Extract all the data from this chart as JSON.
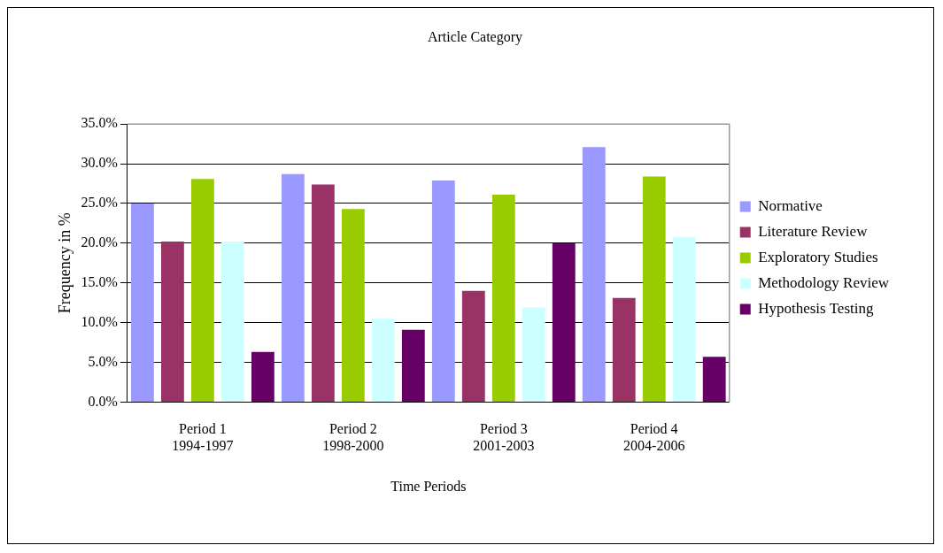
{
  "chart_data": {
    "type": "bar",
    "title": "Article Category",
    "xlabel": "Time Periods",
    "ylabel": "Frequency in %",
    "categories": [
      "Period 1\n1994-1997",
      "Period 2\n1998-2000",
      "Period 3\n2001-2003",
      "Period 4\n2004-2006"
    ],
    "series": [
      {
        "name": "Normative",
        "color": "#9999ff",
        "values": [
          25.0,
          28.7,
          27.9,
          32.1
        ]
      },
      {
        "name": "Literature Review",
        "color": "#993366",
        "values": [
          20.2,
          27.4,
          14.0,
          13.1
        ]
      },
      {
        "name": "Exploratory Studies",
        "color": "#99cc00",
        "values": [
          28.1,
          24.3,
          26.1,
          28.4
        ]
      },
      {
        "name": "Methodology Review",
        "color": "#ccffff",
        "values": [
          20.2,
          10.5,
          11.9,
          20.8
        ]
      },
      {
        "name": "Hypothesis Testing",
        "color": "#660066",
        "values": [
          6.3,
          9.1,
          20.0,
          5.7
        ]
      }
    ],
    "ylim": [
      0,
      35
    ],
    "yticks": [
      {
        "value": 0,
        "label": "0.0%"
      },
      {
        "value": 5,
        "label": "5.0%"
      },
      {
        "value": 10,
        "label": "10.0%"
      },
      {
        "value": 15,
        "label": "15.0%"
      },
      {
        "value": 20,
        "label": "20.0%"
      },
      {
        "value": 25,
        "label": "25.0%"
      },
      {
        "value": 30,
        "label": "30.0%"
      },
      {
        "value": 35,
        "label": "35.0%"
      }
    ],
    "grid": "y",
    "legend": "right"
  }
}
